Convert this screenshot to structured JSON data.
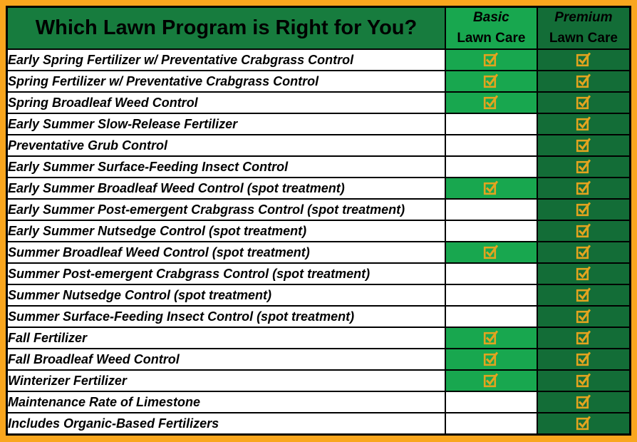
{
  "title": "Which Lawn Program is Right for You?",
  "columns": {
    "basic": {
      "line1": "Basic",
      "line2": "Lawn Care"
    },
    "premium": {
      "line1": "Premium",
      "line2": "Lawn Care"
    }
  },
  "rows": [
    {
      "service": "Early Spring Fertilizer w/ Preventative Crabgrass Control",
      "basic": true,
      "premium": true
    },
    {
      "service": "Spring Fertilizer w/ Preventative Crabgrass Control",
      "basic": true,
      "premium": true
    },
    {
      "service": "Spring Broadleaf Weed Control",
      "basic": true,
      "premium": true
    },
    {
      "service": "Early Summer Slow-Release Fertilizer",
      "basic": false,
      "premium": true
    },
    {
      "service": "Preventative Grub Control",
      "basic": false,
      "premium": true
    },
    {
      "service": "Early Summer Surface-Feeding Insect Control",
      "basic": false,
      "premium": true
    },
    {
      "service": "Early Summer Broadleaf Weed Control (spot treatment)",
      "basic": true,
      "premium": true
    },
    {
      "service": "Early Summer Post-emergent Crabgrass Control (spot treatment)",
      "basic": false,
      "premium": true
    },
    {
      "service": "Early Summer Nutsedge Control (spot treatment)",
      "basic": false,
      "premium": true
    },
    {
      "service": "Summer Broadleaf Weed Control (spot treatment)",
      "basic": true,
      "premium": true
    },
    {
      "service": "Summer Post-emergent Crabgrass Control (spot treatment)",
      "basic": false,
      "premium": true
    },
    {
      "service": "Summer Nutsedge Control (spot treatment)",
      "basic": false,
      "premium": true
    },
    {
      "service": "Summer Surface-Feeding Insect Control (spot treatment)",
      "basic": false,
      "premium": true
    },
    {
      "service": "Fall Fertilizer",
      "basic": true,
      "premium": true
    },
    {
      "service": "Fall Broadleaf Weed Control",
      "basic": true,
      "premium": true
    },
    {
      "service": "Winterizer Fertilizer",
      "basic": true,
      "premium": true
    },
    {
      "service": "Maintenance Rate of Limestone",
      "basic": false,
      "premium": true
    },
    {
      "service": "Includes Organic-Based Fertilizers",
      "basic": false,
      "premium": true
    }
  ],
  "icons": {
    "checked": "checkbox-checked-icon"
  },
  "colors": {
    "frame_orange": "#F9A61E",
    "header_green": "#177C3E",
    "basic_green": "#18A74F",
    "premium_green": "#136D37",
    "check_gold": "#E2A41F",
    "grid_black": "#000000",
    "text_black": "#000000",
    "unchecked_white": "#FFFFFF"
  }
}
